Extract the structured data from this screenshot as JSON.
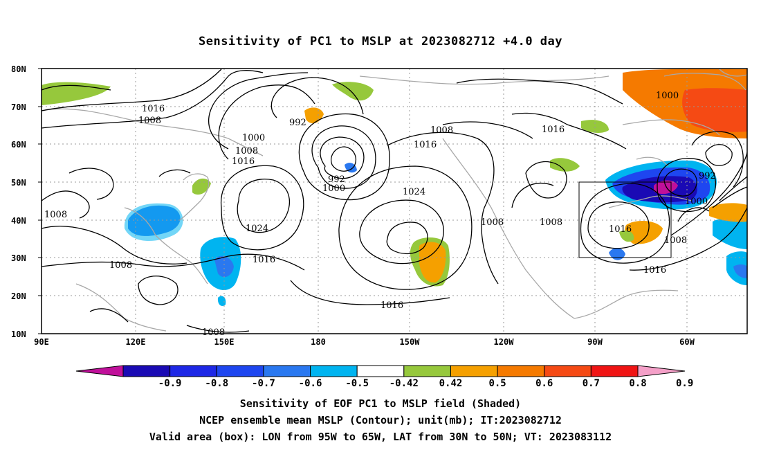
{
  "title": "Sensitivity of PC1 to MSLP at 2023082712 +4.0 day",
  "lat_labels": [
    "80N",
    "70N",
    "60N",
    "50N",
    "40N",
    "30N",
    "20N",
    "10N"
  ],
  "lon_labels": [
    "90E",
    "120E",
    "150E",
    "180",
    "150W",
    "120W",
    "90W",
    "60W"
  ],
  "contour_labels": [
    {
      "text": "1016"
    },
    {
      "text": "1008"
    },
    {
      "text": "992"
    },
    {
      "text": "1000"
    },
    {
      "text": "1008"
    },
    {
      "text": "1016"
    },
    {
      "text": "992"
    },
    {
      "text": "1000"
    },
    {
      "text": "1008"
    },
    {
      "text": "1016"
    },
    {
      "text": "1024"
    },
    {
      "text": "1024"
    },
    {
      "text": "1008"
    },
    {
      "text": "1008"
    },
    {
      "text": "1016"
    },
    {
      "text": "1016"
    },
    {
      "text": "1008"
    },
    {
      "text": "1016"
    },
    {
      "text": "1008"
    },
    {
      "text": "1008"
    },
    {
      "text": "1000"
    },
    {
      "text": "992"
    },
    {
      "text": "1000"
    },
    {
      "text": "1008"
    },
    {
      "text": "1016"
    },
    {
      "text": "1016"
    },
    {
      "text": "1008"
    }
  ],
  "colorbar": {
    "labels": [
      "-0.9",
      "-0.8",
      "-0.7",
      "-0.6",
      "-0.5",
      "-0.42",
      "0.42",
      "0.5",
      "0.6",
      "0.7",
      "0.8",
      "0.9"
    ],
    "colors": [
      "#c0109a",
      "#1a0ab4",
      "#1e28e6",
      "#1e46f0",
      "#2a78f0",
      "#00b4f0",
      "#ffffff",
      "#96c83c",
      "#f5a000",
      "#f57a00",
      "#f54a14",
      "#f01414",
      "#f4a0c8"
    ]
  },
  "captions": [
    "Sensitivity of EOF PC1 to MSLP field (Shaded)",
    "NCEP ensemble mean MSLP (Contour); unit(mb); IT:2023082712",
    "Valid area (box): LON from 95W to 65W, LAT from 30N to 50N; VT: 2023083112"
  ]
}
